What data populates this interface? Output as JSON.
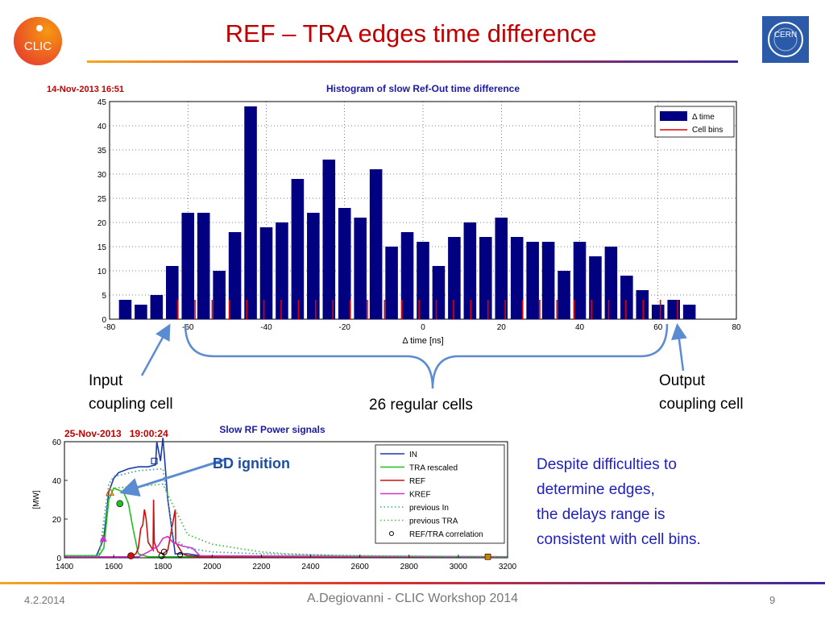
{
  "slide": {
    "title": "REF – TRA edges time difference",
    "footer_date": "4.2.2014",
    "footer_author": "A.Degiovanni - CLIC Workshop 2014",
    "page_number": "9",
    "clic_logo_text": "CLIC",
    "cern_logo_text": "CERN"
  },
  "annotations": {
    "input_label": [
      "Input",
      "coupling cell"
    ],
    "output_label": [
      "Output",
      "coupling cell"
    ],
    "regular_label": "26 regular cells",
    "bd_ignition": "BD ignition",
    "conclusion": [
      "Despite difficulties to",
      "determine edges,",
      "the delays range is",
      "consistent with cell bins."
    ]
  },
  "colors": {
    "bars": "#000080",
    "cell_bins": "#e00000",
    "title_red": "#c00000",
    "annotation_blue": "#1f4fa0"
  },
  "chart_data": [
    {
      "type": "bar",
      "timestamp": "14-Nov-2013 16:51",
      "title": "Histogram of slow Ref-Out time difference",
      "xlabel": "Δ time [ns]",
      "ylabel": "",
      "xlim": [
        -80,
        80
      ],
      "ylim": [
        0,
        45
      ],
      "grid": true,
      "legend": [
        "Δ time",
        "Cell bins"
      ],
      "legend_position": "top-right",
      "xticks": [
        -80,
        -60,
        -40,
        -20,
        0,
        20,
        40,
        60,
        80
      ],
      "yticks": [
        0,
        5,
        10,
        15,
        20,
        25,
        30,
        35,
        40,
        45
      ],
      "bin_width": 4,
      "bin_centers": [
        -76,
        -72,
        -68,
        -64,
        -60,
        -56,
        -52,
        -48,
        -44,
        -40,
        -36,
        -32,
        -28,
        -24,
        -20,
        -16,
        -12,
        -8,
        -4,
        0,
        4,
        8,
        12,
        16,
        20,
        24,
        28,
        32,
        36,
        40,
        44,
        48,
        52,
        56,
        60,
        64,
        68
      ],
      "values": [
        4,
        3,
        5,
        11,
        22,
        22,
        10,
        18,
        44,
        19,
        20,
        29,
        22,
        33,
        23,
        21,
        31,
        15,
        18,
        16,
        11,
        17,
        20,
        17,
        21,
        17,
        16,
        16,
        10,
        16,
        13,
        15,
        9,
        6,
        3,
        4,
        3
      ],
      "cell_bins": [
        -62.6,
        -58.2,
        -53.8,
        -49.4,
        -45.0,
        -40.6,
        -36.2,
        -31.8,
        -27.4,
        -23.0,
        -18.6,
        -14.2,
        -9.8,
        -5.4,
        -1.0,
        3.4,
        7.8,
        12.2,
        16.6,
        21.0,
        25.4,
        29.8,
        34.2,
        38.6,
        43.0,
        47.4,
        51.8,
        56.2,
        60.6,
        65.0
      ],
      "cell_bin_height": 4
    },
    {
      "type": "line",
      "timestamp": "25-Nov-2013   19:00:24",
      "title": "Slow RF Power signals",
      "ylabel": "[MW]",
      "xlim": [
        1400,
        3200
      ],
      "ylim": [
        0,
        60
      ],
      "xticks": [
        1400,
        1600,
        1800,
        2000,
        2200,
        2400,
        2600,
        2800,
        3000,
        3200
      ],
      "yticks": [
        0,
        20,
        40,
        60
      ],
      "legend_position": "top-right",
      "series": [
        {
          "name": "IN",
          "color": "#1a3aa8",
          "x": [
            1400,
            1530,
            1560,
            1580,
            1600,
            1620,
            1660,
            1700,
            1740,
            1770,
            1775,
            1790,
            1800,
            1805,
            1820,
            1850,
            1900,
            1950,
            2000,
            3200
          ],
          "y": [
            1,
            1,
            10,
            34,
            41,
            44,
            46,
            47,
            47,
            48,
            60,
            50,
            62,
            54,
            30,
            2,
            2,
            1,
            0.5,
            0.5
          ]
        },
        {
          "name": "TRA rescaled",
          "color": "#20c020",
          "x": [
            1400,
            1540,
            1560,
            1580,
            1600,
            1620,
            1640,
            1660,
            1680,
            1700,
            1740,
            3200
          ],
          "y": [
            1,
            1,
            5,
            30,
            36,
            35,
            34,
            28,
            14,
            2,
            0.5,
            0.5
          ]
        },
        {
          "name": "REF",
          "color": "#d01010",
          "x": [
            1400,
            1660,
            1690,
            1700,
            1710,
            1718,
            1725,
            1732,
            1740,
            1760,
            1762,
            1765,
            1780,
            1800,
            1820,
            1850,
            1852,
            1880,
            1900,
            1950,
            3200
          ],
          "y": [
            0.5,
            0.5,
            2,
            5,
            15,
            17,
            25,
            20,
            8,
            4,
            30,
            8,
            3,
            2,
            4,
            25,
            8,
            2,
            1,
            0.5,
            0.5
          ]
        },
        {
          "name": "KREF",
          "color": "#d030d0",
          "x": [
            1400,
            1700,
            1740,
            1780,
            1800,
            1820,
            1840,
            1880,
            1920,
            1950,
            3200
          ],
          "y": [
            0.5,
            0.5,
            3,
            6,
            10,
            11,
            8,
            6,
            5,
            1,
            0.5
          ]
        },
        {
          "name": "previous In",
          "color": "#40a8a0",
          "dashed": true,
          "x": [
            1400,
            1540,
            1580,
            1600,
            1700,
            1800,
            1820,
            1840,
            1900,
            2000,
            2200,
            2600,
            3200
          ],
          "y": [
            1,
            1,
            38,
            42,
            45,
            46,
            30,
            10,
            5,
            3,
            2,
            1,
            0.5
          ]
        },
        {
          "name": "previous TRA",
          "color": "#40c040",
          "dashed": true,
          "x": [
            1400,
            1540,
            1580,
            1600,
            1700,
            1800,
            1830,
            1900,
            2000,
            2100,
            2200,
            2300,
            2500,
            2800,
            3200
          ],
          "y": [
            1,
            1,
            30,
            36,
            37,
            38,
            30,
            12,
            7,
            5,
            3,
            2,
            1.2,
            0.8,
            0.5
          ]
        },
        {
          "name": "REF/TRA correlation",
          "color": "#000000",
          "markers_only": true,
          "x": [
            1870
          ],
          "y": [
            1.5
          ]
        }
      ],
      "markers": [
        {
          "x": 1558,
          "y": 10,
          "color": "#d030d0",
          "shape": "triangle"
        },
        {
          "x": 1585,
          "y": 34,
          "color": "#e06000",
          "shape": "triangle-open"
        },
        {
          "x": 1625,
          "y": 28,
          "color": "#20c020",
          "shape": "circle"
        },
        {
          "x": 1670,
          "y": 1,
          "color": "#d01010",
          "shape": "circle"
        },
        {
          "x": 1765,
          "y": 50,
          "color": "#1a3aa8",
          "shape": "square-open"
        },
        {
          "x": 1795,
          "y": 1,
          "color": "#000000",
          "shape": "circle-open"
        },
        {
          "x": 1805,
          "y": 3,
          "color": "#000000",
          "shape": "circle-open"
        },
        {
          "x": 3120,
          "y": 0.5,
          "color": "#d08000",
          "shape": "square"
        }
      ]
    }
  ]
}
